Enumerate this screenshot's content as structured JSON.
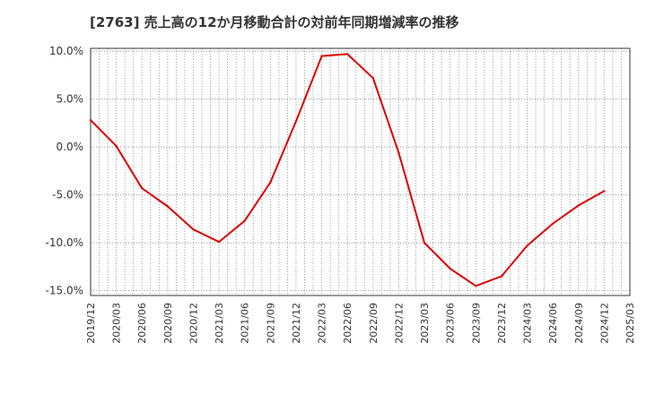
{
  "chart_data": {
    "type": "line",
    "title": "[2763]  売上高の12か月移動合計の対前年同期増減率の推移",
    "xlabel": "",
    "ylabel": "",
    "ylim": [
      -15.5,
      10.3
    ],
    "yticks": [
      10.0,
      5.0,
      0.0,
      -5.0,
      -10.0,
      -15.0
    ],
    "ytick_labels": [
      "10.0%",
      "5.0%",
      "0.0%",
      "-5.0%",
      "-10.0%",
      "-15.0%"
    ],
    "x_tick_labels": [
      "2019/12",
      "2020/03",
      "2020/06",
      "2020/09",
      "2020/12",
      "2021/03",
      "2021/06",
      "2021/09",
      "2021/12",
      "2022/03",
      "2022/06",
      "2022/09",
      "2022/12",
      "2023/03",
      "2023/06",
      "2023/09",
      "2023/12",
      "2024/03",
      "2024/06",
      "2024/09",
      "2024/12",
      "2025/03"
    ],
    "grid": true,
    "line_color": "#dd0000",
    "series": [
      {
        "name": "増減率",
        "x": [
          "2019/12",
          "2020/03",
          "2020/06",
          "2020/09",
          "2020/12",
          "2021/03",
          "2021/06",
          "2021/09",
          "2021/12",
          "2022/03",
          "2022/06",
          "2022/09",
          "2022/12",
          "2023/03",
          "2023/06",
          "2023/09",
          "2023/12",
          "2024/03",
          "2024/06",
          "2024/09",
          "2024/12"
        ],
        "values": [
          2.8,
          0.1,
          -4.3,
          -6.2,
          -8.6,
          -9.9,
          -7.7,
          -3.7,
          2.7,
          9.5,
          9.7,
          7.2,
          -0.6,
          -10.0,
          -12.7,
          -14.5,
          -13.5,
          -10.3,
          -8.0,
          -6.1,
          -4.6
        ]
      }
    ]
  }
}
